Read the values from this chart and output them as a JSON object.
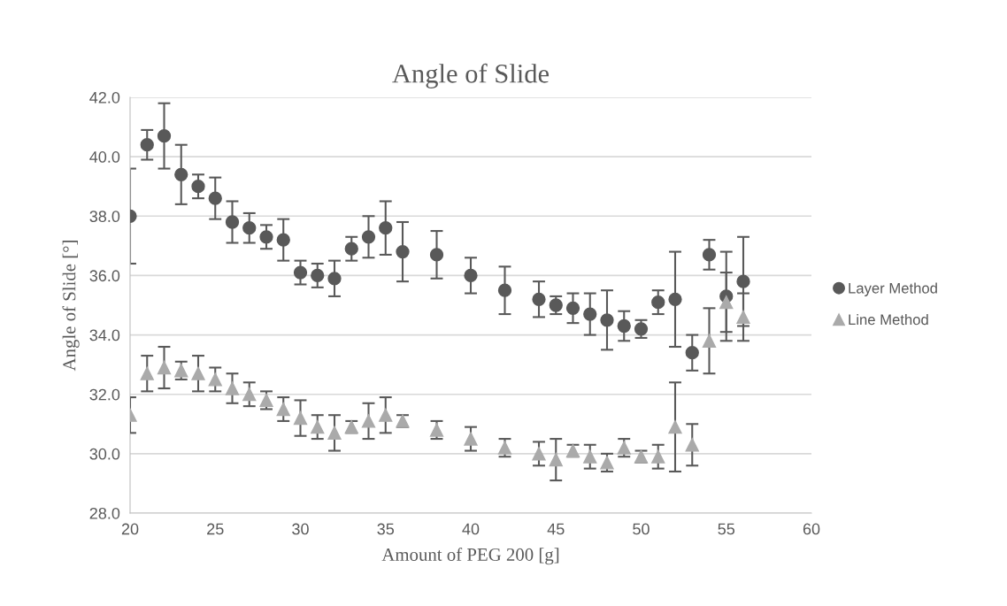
{
  "chart_data": {
    "type": "scatter",
    "title": "Angle of Slide",
    "xlabel": "Amount of PEG 200 [g]",
    "ylabel": "Angle of Slide [°]",
    "xlim": [
      20,
      60
    ],
    "xticks": [
      20,
      25,
      30,
      35,
      40,
      45,
      50,
      55,
      60
    ],
    "ylim": [
      28,
      42
    ],
    "yticks": [
      {
        "value": 28,
        "label": "28.0"
      },
      {
        "value": 30,
        "label": "30.0"
      },
      {
        "value": 32,
        "label": "32.0"
      },
      {
        "value": 34,
        "label": "34.0"
      },
      {
        "value": 36,
        "label": "36.0"
      },
      {
        "value": 38,
        "label": "38.0"
      },
      {
        "value": 40,
        "label": "40.0"
      },
      {
        "value": 42,
        "label": "42.0"
      }
    ],
    "grid": "y",
    "legend": "right",
    "x": [
      20,
      21,
      22,
      23,
      24,
      25,
      26,
      27,
      28,
      29,
      30,
      31,
      32,
      33,
      34,
      35,
      36,
      38,
      40,
      42,
      44,
      45,
      46,
      47,
      48,
      49,
      50,
      51,
      52,
      53,
      54,
      55,
      56
    ],
    "series": [
      {
        "name": "Layer Method",
        "color": "#595959",
        "marker": "circle",
        "values": [
          38.0,
          40.4,
          40.7,
          39.4,
          39.0,
          38.6,
          37.8,
          37.6,
          37.3,
          37.2,
          36.1,
          36.0,
          35.9,
          36.9,
          37.3,
          37.6,
          36.8,
          36.7,
          36.0,
          35.5,
          35.2,
          35.0,
          34.9,
          34.7,
          34.5,
          34.3,
          34.2,
          35.1,
          35.2,
          33.4,
          36.7,
          35.3,
          35.8
        ],
        "errors": [
          1.6,
          0.5,
          1.1,
          1.0,
          0.4,
          0.7,
          0.7,
          0.5,
          0.4,
          0.7,
          0.4,
          0.4,
          0.6,
          0.4,
          0.7,
          0.9,
          1.0,
          0.8,
          0.6,
          0.8,
          0.6,
          0.3,
          0.5,
          0.7,
          1.0,
          0.5,
          0.3,
          0.4,
          1.6,
          0.6,
          0.5,
          1.5,
          1.5
        ]
      },
      {
        "name": "Line Method",
        "color": "#aaaaaa",
        "marker": "triangle",
        "values": [
          31.3,
          32.7,
          32.9,
          32.8,
          32.7,
          32.5,
          32.2,
          32.0,
          31.8,
          31.5,
          31.2,
          30.9,
          30.7,
          30.9,
          31.1,
          31.3,
          31.1,
          30.8,
          30.5,
          30.2,
          30.0,
          29.8,
          30.1,
          29.9,
          29.7,
          30.2,
          29.9,
          29.9,
          30.9,
          30.3,
          33.8,
          35.1,
          34.6
        ],
        "errors": [
          0.6,
          0.6,
          0.7,
          0.3,
          0.6,
          0.4,
          0.5,
          0.4,
          0.3,
          0.4,
          0.6,
          0.4,
          0.6,
          0.2,
          0.6,
          0.6,
          0.2,
          0.3,
          0.4,
          0.3,
          0.4,
          0.7,
          0.2,
          0.4,
          0.3,
          0.3,
          0.2,
          0.4,
          1.5,
          0.7,
          1.1,
          1.0,
          0.8
        ]
      }
    ]
  }
}
